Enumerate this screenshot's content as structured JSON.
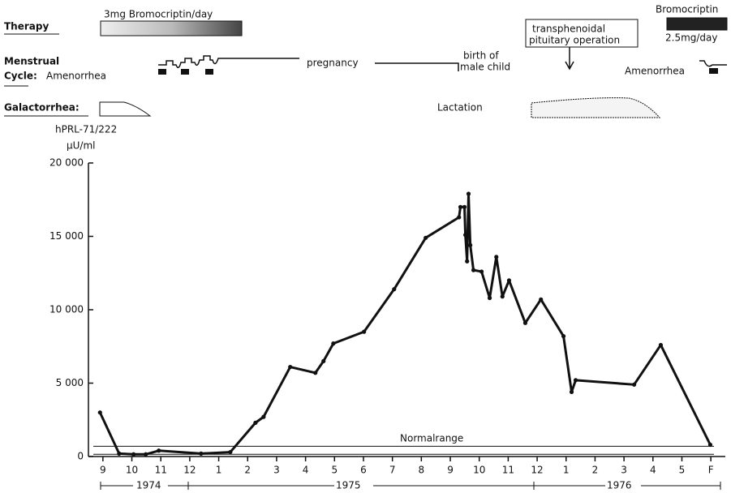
{
  "chart_data": {
    "type": "line",
    "title": "hPRL-71/222",
    "ylabel": "µU/ml",
    "annotations": [
      "Therapy",
      "3mg Bromocriptin/day",
      "Bromocriptin",
      "2.5mg/day",
      "Menstrual",
      "Cycle:",
      "Amenorrhea",
      "pregnancy",
      "birth of",
      "male child",
      "transphenoidal",
      "pituitary operation",
      "Amenorrhea",
      "Galactorrhea:",
      "Lactation",
      "1974",
      "1975",
      "1976",
      "Normalrange"
    ],
    "normal_range": [
      150,
      700
    ],
    "x": [
      -0.1,
      0.56,
      1.06,
      1.48,
      1.93,
      3.39,
      4.4,
      5.27,
      5.55,
      6.47,
      7.34,
      7.62,
      7.96,
      9.02,
      10.06,
      11.15,
      12.3,
      12.35,
      12.49,
      12.52,
      12.58,
      12.63,
      12.69,
      12.8,
      13.08,
      13.36,
      13.59,
      13.8,
      14.03,
      14.59,
      15.13,
      15.91,
      16.19,
      16.33,
      18.35,
      19.27,
      20.98
    ],
    "series": [
      {
        "name": "hPRL",
        "color": "#111111",
        "values": [
          3000,
          200,
          150,
          150,
          400,
          200,
          300,
          2300,
          2700,
          6100,
          5700,
          6500,
          7700,
          8500,
          11400,
          14900,
          16300,
          17000,
          17000,
          15100,
          13300,
          17900,
          14400,
          12700,
          12600,
          10800,
          13600,
          10900,
          12000,
          9100,
          10700,
          8200,
          4400,
          5200,
          4900,
          7600,
          800
        ]
      }
    ],
    "xlim": [
      -0.5,
      21.5
    ],
    "ylim": [
      0,
      20000
    ],
    "xticks": [
      {
        "value": 0,
        "label": "9"
      },
      {
        "value": 1,
        "label": "10"
      },
      {
        "value": 2,
        "label": "11"
      },
      {
        "value": 3,
        "label": "12"
      },
      {
        "value": 4,
        "label": "1"
      },
      {
        "value": 5,
        "label": "2"
      },
      {
        "value": 6,
        "label": "3"
      },
      {
        "value": 7,
        "label": "4"
      },
      {
        "value": 8,
        "label": "5"
      },
      {
        "value": 9,
        "label": "6"
      },
      {
        "value": 10,
        "label": "7"
      },
      {
        "value": 11,
        "label": "8"
      },
      {
        "value": 12,
        "label": "9"
      },
      {
        "value": 13,
        "label": "10"
      },
      {
        "value": 14,
        "label": "11"
      },
      {
        "value": 15,
        "label": "12"
      },
      {
        "value": 16,
        "label": "1"
      },
      {
        "value": 17,
        "label": "2"
      },
      {
        "value": 18,
        "label": "3"
      },
      {
        "value": 19,
        "label": "4"
      },
      {
        "value": 20,
        "label": "5"
      },
      {
        "value": 21,
        "label": "F"
      }
    ],
    "yticks": [
      0,
      {
        "value": 5000,
        "label": "5 000"
      },
      {
        "value": 10000,
        "label": "10 000"
      },
      {
        "value": 15000,
        "label": "15 000"
      },
      {
        "value": 20000,
        "label": "20 000"
      }
    ]
  }
}
